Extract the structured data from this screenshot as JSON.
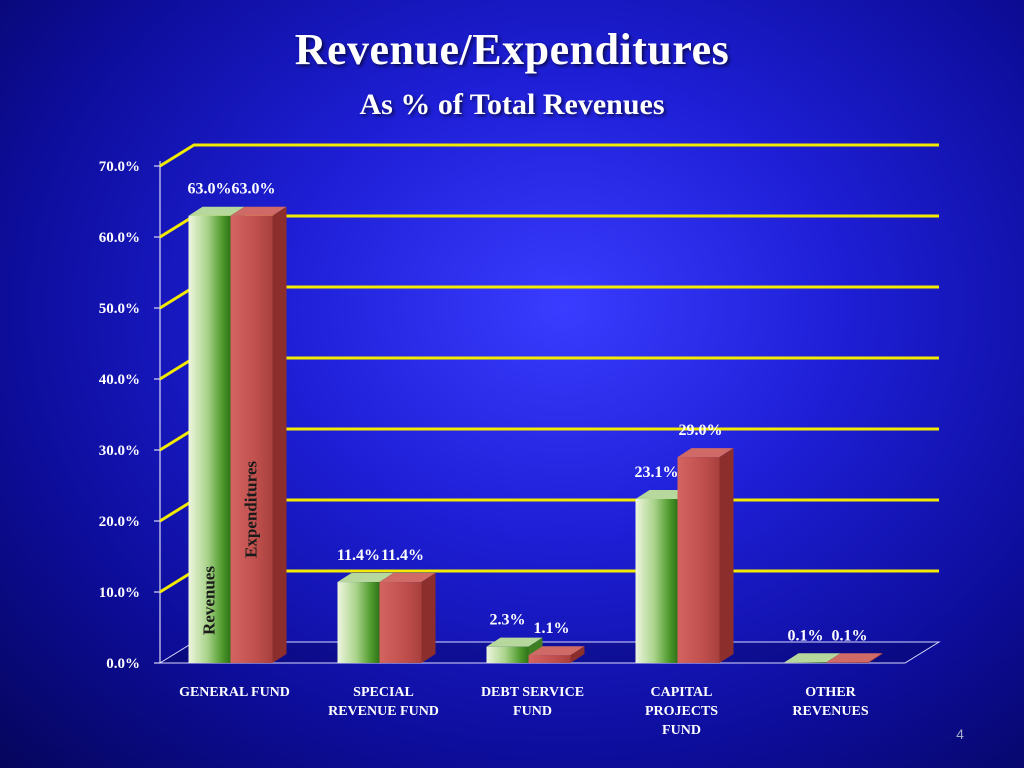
{
  "slide": {
    "title": "Revenue/Expenditures",
    "subtitle": "As % of Total Revenues",
    "page_number": "4"
  },
  "colors": {
    "revenues": "#8fc56b",
    "expenditures": "#c0504d",
    "gridline": "#f2ea00",
    "text": "#ffffff"
  },
  "chart_data": {
    "type": "bar",
    "categories": [
      [
        "GENERAL FUND"
      ],
      [
        "SPECIAL",
        "REVENUE FUND"
      ],
      [
        "DEBT SERVICE",
        "FUND"
      ],
      [
        "CAPITAL",
        "PROJECTS",
        "FUND"
      ],
      [
        "OTHER",
        "REVENUES"
      ]
    ],
    "series": [
      {
        "name": "Revenues",
        "values": [
          63.0,
          11.4,
          2.3,
          23.1,
          0.1
        ],
        "labels": [
          "63.0%",
          "11.4%",
          "2.3%",
          "23.1%",
          "0.1%"
        ]
      },
      {
        "name": "Expenditures",
        "values": [
          63.0,
          11.4,
          1.1,
          29.0,
          0.1
        ],
        "labels": [
          "63.0%",
          "11.4%",
          "1.1%",
          "29.0%",
          "0.1%"
        ]
      }
    ],
    "yticks": [
      "0.0%",
      "10.0%",
      "20.0%",
      "30.0%",
      "40.0%",
      "50.0%",
      "60.0%",
      "70.0%"
    ],
    "ylim": [
      0,
      70
    ],
    "grid": true,
    "legend": "series names written inside the first pair of bars"
  }
}
